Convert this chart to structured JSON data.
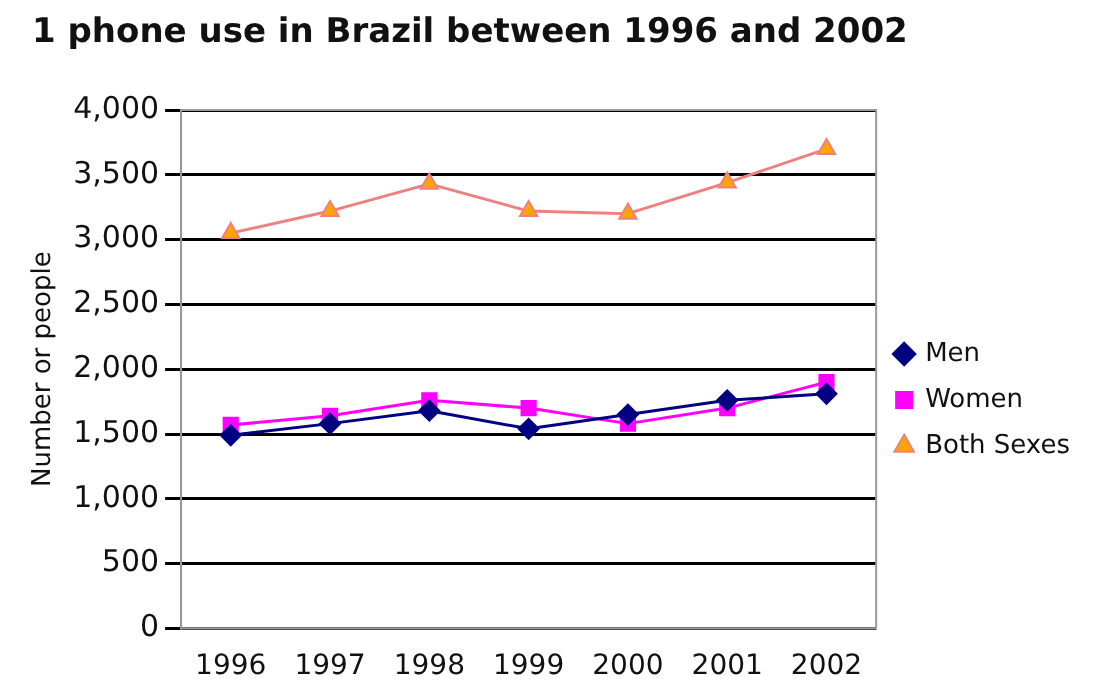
{
  "chart_data": {
    "type": "line",
    "title": "1 phone use in Brazil between 1996 and 2002",
    "ylabel": "Number or people",
    "categories": [
      "1996",
      "1997",
      "1998",
      "1999",
      "2000",
      "2001",
      "2002"
    ],
    "series": [
      {
        "name": "Men",
        "color": "#000080",
        "marker": "diamond",
        "values": [
          1490,
          1580,
          1680,
          1540,
          1650,
          1760,
          1810
        ]
      },
      {
        "name": "Women",
        "color": "#ff00ff",
        "marker": "square",
        "values": [
          1570,
          1640,
          1760,
          1700,
          1580,
          1700,
          1900
        ]
      },
      {
        "name": "Both Sexes",
        "color": "#f08080",
        "marker": "triangle",
        "values": [
          3050,
          3220,
          3430,
          3220,
          3200,
          3440,
          3700
        ]
      }
    ],
    "ylim": [
      0,
      4000
    ],
    "yticks": [
      0,
      500,
      {
        "value": 1000,
        "label": "1,000"
      },
      {
        "value": 1500,
        "label": "1,500"
      },
      {
        "value": 2000,
        "label": "2,000"
      },
      {
        "value": 2500,
        "label": "2,500"
      },
      {
        "value": 3000,
        "label": "3,000"
      },
      {
        "value": 3500,
        "label": "3,500"
      },
      {
        "value": 4000,
        "label": "4,000"
      }
    ],
    "grid": "y",
    "legend": "right",
    "line_style": "solid"
  }
}
